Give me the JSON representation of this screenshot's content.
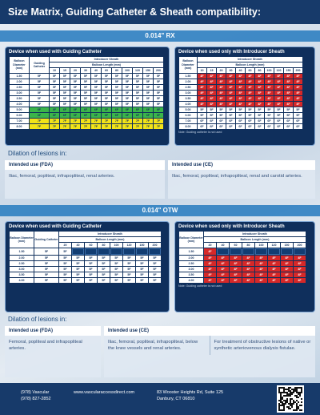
{
  "header": {
    "title": "Size Matrix, Guiding Catheter & Sheath compatibility:"
  },
  "rx": {
    "title": "0.014\" RX",
    "guiding_table": {
      "title": "Device when used with Guiding Catheter",
      "columns": {
        "diameter": "Balloon Diameter (mm)",
        "guiding": "Guiding Catheter",
        "sheath": "Introducer Sheath",
        "length": "Balloon Length (mm)"
      },
      "lengths": [
        10,
        15,
        20,
        30,
        40,
        60,
        80,
        100,
        120,
        150,
        200
      ],
      "rows": [
        {
          "diameter": "1.50",
          "guiding": "5F",
          "color": "#ffffff",
          "sheath": [
            "5F",
            "5F",
            "5F",
            "5F",
            "5F",
            "5F",
            "5F",
            "5F",
            "5F",
            "5F",
            "5F"
          ]
        },
        {
          "diameter": "2.00",
          "guiding": "5F",
          "color": "#ffffff",
          "sheath": [
            "5F",
            "5F",
            "5F",
            "5F",
            "5F",
            "5F",
            "5F",
            "5F",
            "5F",
            "5F",
            "5F"
          ]
        },
        {
          "diameter": "2.50",
          "guiding": "5F",
          "color": "#ffffff",
          "sheath": [
            "5F",
            "5F",
            "5F",
            "5F",
            "5F",
            "5F",
            "5F",
            "5F",
            "5F",
            "5F",
            "5F"
          ]
        },
        {
          "diameter": "3.00",
          "guiding": "5F",
          "color": "#ffffff",
          "sheath": [
            "5F",
            "5F",
            "5F",
            "5F",
            "5F",
            "5F",
            "5F",
            "5F",
            "5F",
            "5F",
            "5F"
          ]
        },
        {
          "diameter": "3.50",
          "guiding": "5F",
          "color": "#ffffff",
          "sheath": [
            "5F",
            "5F",
            "5F",
            "5F",
            "5F",
            "5F",
            "5F",
            "5F",
            "5F",
            "5F",
            "5F"
          ]
        },
        {
          "diameter": "4.00",
          "guiding": "5F",
          "color": "#ffffff",
          "sheath": [
            "5F",
            "5F",
            "5F",
            "5F",
            "5F",
            "5F",
            "5F",
            "5F",
            "5F",
            "5F",
            "5F"
          ]
        },
        {
          "diameter": "5.00",
          "guiding": "6F",
          "color": "#3bb54a",
          "sheath": [
            "6F",
            "6F",
            "6F",
            "6F",
            "6F",
            "6F",
            "6F",
            "6F",
            "6F",
            "6F",
            "6F"
          ]
        },
        {
          "diameter": "6.00",
          "guiding": "6F",
          "color": "#3bb54a",
          "sheath": [
            "6F",
            "6F",
            "6F",
            "6F",
            "6F",
            "6F",
            "6F",
            "6F",
            "6F",
            "6F",
            "6F"
          ]
        },
        {
          "diameter": "7.00",
          "guiding": "7F",
          "color": "#f2e318",
          "sheath": [
            "7F",
            "7F",
            "7F",
            "7F",
            "7F",
            "7F",
            "7F",
            "7F",
            "7F",
            "7F",
            "7F"
          ]
        },
        {
          "diameter": "8.00",
          "guiding": "7F",
          "color": "#f2e318",
          "sheath": [
            "7F",
            "7F",
            "7F",
            "7F",
            "7F",
            "7F",
            "7F",
            "7F",
            "7F",
            "7F",
            "7F"
          ]
        }
      ]
    },
    "sheath_table": {
      "title": "Device when used only with Introducer Sheath",
      "columns": {
        "diameter": "Balloon Diameter (mm)",
        "sheath": "Introducer Sheath",
        "length": "Balloon Length (mm)"
      },
      "lengths": [
        10,
        15,
        20,
        30,
        40,
        60,
        80,
        100,
        120,
        150,
        200
      ],
      "note": "Note: Guiding catheter is not used",
      "rows": [
        {
          "diameter": "1.50",
          "color": "#d62828",
          "sheath": [
            "4F",
            "4F",
            "4F",
            "4F",
            "4F",
            "4F",
            "4F",
            "4F",
            "4F",
            "4F",
            "4F"
          ]
        },
        {
          "diameter": "2.00",
          "color": "#d62828",
          "sheath": [
            "4F",
            "4F",
            "4F",
            "4F",
            "4F",
            "4F",
            "4F",
            "4F",
            "4F",
            "4F",
            "4F"
          ]
        },
        {
          "diameter": "2.50",
          "color": "#d62828",
          "sheath": [
            "4F",
            "4F",
            "4F",
            "4F",
            "4F",
            "4F",
            "4F",
            "4F",
            "4F",
            "4F",
            "4F"
          ]
        },
        {
          "diameter": "3.00",
          "color": "#d62828",
          "sheath": [
            "4F",
            "4F",
            "4F",
            "4F",
            "4F",
            "4F",
            "4F",
            "4F",
            "4F",
            "4F",
            "4F"
          ]
        },
        {
          "diameter": "3.50",
          "color": "#d62828",
          "sheath": [
            "4F",
            "4F",
            "4F",
            "4F",
            "4F",
            "4F",
            "4F",
            "4F",
            "4F",
            "4F",
            "4F"
          ]
        },
        {
          "diameter": "4.00",
          "color": "#d62828",
          "sheath": [
            "4F",
            "4F",
            "4F",
            "4F",
            "4F",
            "4F",
            "4F",
            "4F",
            "4F",
            "4F",
            "4F"
          ]
        },
        {
          "diameter": "5.00",
          "color": "#ffffff",
          "sheath": [
            "5F",
            "5F",
            "5F",
            "5F",
            "5F",
            "5F",
            "5F",
            "5F",
            "5F",
            "5F",
            "5F"
          ]
        },
        {
          "diameter": "6.00",
          "color": "#ffffff",
          "sheath": [
            "5F",
            "5F",
            "5F",
            "5F",
            "5F",
            "5F",
            "5F",
            "5F",
            "5F",
            "5F",
            "5F"
          ]
        },
        {
          "diameter": "7.00",
          "color": "#ffffff",
          "sheath": [
            "6F",
            "6F",
            "6F",
            "6F",
            "6F",
            "6F",
            "6F",
            "6F",
            "6F",
            "6F",
            "6F"
          ]
        },
        {
          "diameter": "8.00",
          "color": "#ffffff",
          "sheath": [
            "6F",
            "6F",
            "6F",
            "6F",
            "6F",
            "6F",
            "6F",
            "6F",
            "6F",
            "6F",
            "6F"
          ]
        }
      ]
    },
    "dilation": {
      "title": "Dilation of lesions in:",
      "uses": [
        {
          "label": "Intended use (FDA)",
          "texts": [
            "Iliac, femoral, popliteal, infrapopliteal, renal arteries."
          ]
        },
        {
          "label": "Intended use (CE)",
          "texts": [
            "Iliac, femoral, popliteal, infrapopliteal, renal and carotid arteries."
          ]
        }
      ]
    }
  },
  "otw": {
    "title": "0.014\" OTW",
    "guiding_table": {
      "title": "Device when used with Guiding Catheter",
      "columns": {
        "diameter": "Balloon Diameter (mm)",
        "guiding": "Guiding Catheter",
        "sheath": "Introducer Sheath",
        "length": "Balloon Length (mm)"
      },
      "lengths": [
        20,
        40,
        60,
        80,
        100,
        120,
        150,
        200
      ],
      "rows": [
        {
          "diameter": "1.50",
          "guiding": "5F",
          "color": "#ffffff",
          "sheath": [
            "5F",
            null,
            null,
            null,
            null,
            null,
            null,
            null
          ]
        },
        {
          "diameter": "2.00",
          "guiding": "5F",
          "color": "#ffffff",
          "sheath": [
            "5F",
            "5F",
            "5F",
            "5F",
            "5F",
            "5F",
            "5F",
            "5F"
          ]
        },
        {
          "diameter": "2.50",
          "guiding": "5F",
          "color": "#ffffff",
          "sheath": [
            "5F",
            "5F",
            "5F",
            "5F",
            "5F",
            "5F",
            "5F",
            "5F"
          ]
        },
        {
          "diameter": "3.00",
          "guiding": "5F",
          "color": "#ffffff",
          "sheath": [
            "5F",
            "5F",
            "5F",
            "5F",
            "5F",
            "5F",
            "5F",
            "5F"
          ]
        },
        {
          "diameter": "3.50",
          "guiding": "5F",
          "color": "#ffffff",
          "sheath": [
            "5F",
            "5F",
            "5F",
            "5F",
            "5F",
            "5F",
            "5F",
            "5F"
          ]
        },
        {
          "diameter": "4.00",
          "guiding": "5F",
          "color": "#ffffff",
          "sheath": [
            "5F",
            "5F",
            "5F",
            "5F",
            "5F",
            "5F",
            "5F",
            "5F"
          ]
        }
      ]
    },
    "sheath_table": {
      "title": "Device when used only with Introducer Sheath",
      "columns": {
        "diameter": "Balloon Diameter (mm)",
        "sheath": "Introducer Sheath",
        "length": "Balloon Length (mm)"
      },
      "lengths": [
        20,
        40,
        60,
        80,
        100,
        120,
        150,
        200
      ],
      "note": "Note: Guiding catheter is not used",
      "rows": [
        {
          "diameter": "1.50",
          "color": "#d62828",
          "sheath": [
            "4F",
            null,
            null,
            null,
            null,
            null,
            null,
            null
          ]
        },
        {
          "diameter": "2.00",
          "color": "#d62828",
          "sheath": [
            "4F",
            "4F",
            "4F",
            "4F",
            "4F",
            "4F",
            "4F",
            "4F"
          ]
        },
        {
          "diameter": "2.50",
          "color": "#d62828",
          "sheath": [
            "4F",
            "4F",
            "4F",
            "4F",
            "4F",
            "4F",
            "4F",
            "4F"
          ]
        },
        {
          "diameter": "3.00",
          "color": "#d62828",
          "sheath": [
            "4F",
            "4F",
            "4F",
            "4F",
            "4F",
            "4F",
            "4F",
            "4F"
          ]
        },
        {
          "diameter": "3.50",
          "color": "#d62828",
          "sheath": [
            "4F",
            "4F",
            "4F",
            "4F",
            "4F",
            "4F",
            "4F",
            "4F"
          ]
        },
        {
          "diameter": "4.00",
          "color": "#d62828",
          "sheath": [
            "4F",
            "4F",
            "4F",
            "4F",
            "4F",
            "4F",
            "4F",
            "4F"
          ]
        }
      ]
    },
    "dilation": {
      "title": "Dilation of lesions in:",
      "uses": [
        {
          "label": "Intended use (FDA)",
          "texts": [
            "Femoral, popliteal and infrapopliteal arteries."
          ]
        },
        {
          "label": "Intended use (CE)",
          "texts": [
            "Iliac, femoral, popliteal, infrapopliteal, below the knee vessels and renal arteries.",
            "For treatment of obstructive lesions of native or synthetic arteriovenous dialysis fistulae."
          ]
        }
      ]
    }
  },
  "footer": {
    "phone_label": "(978) Vascular",
    "phone": "(978) 827-2852",
    "website": "www.vascularaccessdirect.com",
    "address_lines": [
      "83 Wooster Heights Rd, Suite 125",
      "Danbury, CT 06810"
    ]
  }
}
